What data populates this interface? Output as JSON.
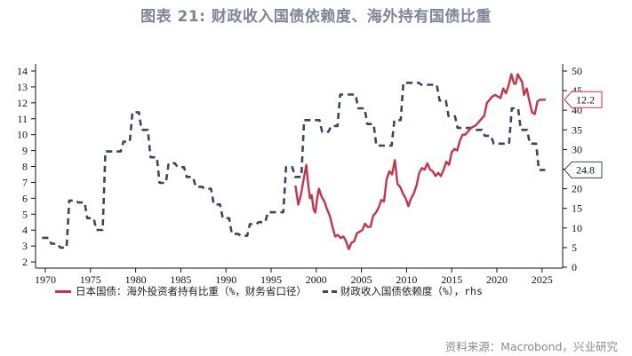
{
  "title": "图表 21: 财政收入国债依赖度、海外持有国债比重",
  "source": "资料来源：Macrobond，兴业研究",
  "colors": {
    "lhs_series": "#c8334a",
    "rhs_series": "#3a4564",
    "title": "#7d8597",
    "axis": "#111111"
  },
  "legend": {
    "lhs_label": "日本国债：海外投资者持有比重（%，财务省口径）",
    "rhs_label": "财政收入国债依赖度（%），rhs"
  },
  "callouts": {
    "lhs_last": "12.2",
    "rhs_last": "24.8"
  },
  "chart_data": {
    "type": "line",
    "title": "图表 21: 财政收入国债依赖度、海外持有国债比重",
    "xlabel": "",
    "ylabel_left": "",
    "ylabel_right": "",
    "x_ticks": [
      "1970",
      "1975",
      "1980",
      "1985",
      "1990",
      "1995",
      "2000",
      "2005",
      "2010",
      "2015",
      "2020",
      "2025"
    ],
    "y_left_ticks": [
      "2",
      "3",
      "4",
      "5",
      "6",
      "7",
      "8",
      "9",
      "10",
      "11",
      "12",
      "13",
      "14"
    ],
    "y_right_ticks": [
      "0",
      "5",
      "10",
      "15",
      "20",
      "25",
      "30",
      "35",
      "40",
      "45",
      "50"
    ],
    "ylim_left": [
      2,
      14
    ],
    "ylim_right": [
      0,
      50
    ],
    "xlim": [
      1969,
      2027.5
    ],
    "grid": false,
    "legend_position": "bottom",
    "series": [
      {
        "name": "日本国债：海外投资者持有比重（%，财务省口径）",
        "axis": "left",
        "style": "solid",
        "color": "#c8334a",
        "last_value": 12.2,
        "x": [
          1997.7,
          1998.0,
          1998.3,
          1998.6,
          1998.9,
          1999.1,
          1999.3,
          1999.5,
          1999.7,
          1999.9,
          2000.1,
          2000.3,
          2000.6,
          2000.9,
          2001.2,
          2001.5,
          2001.8,
          2002.1,
          2002.4,
          2002.7,
          2003.0,
          2003.3,
          2003.6,
          2003.9,
          2004.2,
          2004.5,
          2004.8,
          2005.1,
          2005.4,
          2005.7,
          2006.0,
          2006.3,
          2006.6,
          2006.9,
          2007.2,
          2007.5,
          2007.8,
          2008.1,
          2008.4,
          2008.7,
          2009.0,
          2009.3,
          2009.6,
          2009.9,
          2010.2,
          2010.5,
          2010.8,
          2011.1,
          2011.4,
          2011.7,
          2012.0,
          2012.3,
          2012.6,
          2012.9,
          2013.2,
          2013.5,
          2013.8,
          2014.1,
          2014.4,
          2014.7,
          2015.0,
          2015.3,
          2015.6,
          2015.9,
          2016.2,
          2016.5,
          2016.8,
          2017.1,
          2017.4,
          2017.7,
          2018.0,
          2018.3,
          2018.6,
          2018.9,
          2019.2,
          2019.5,
          2019.8,
          2020.1,
          2020.4,
          2020.7,
          2021.0,
          2021.3,
          2021.6,
          2021.9,
          2022.1,
          2022.3,
          2022.5,
          2022.8,
          2023.0,
          2023.3,
          2023.6,
          2023.9,
          2024.2,
          2024.5,
          2024.8,
          2025.1,
          2025.4
        ],
        "values": [
          6.8,
          5.6,
          6.2,
          7.2,
          8.1,
          6.9,
          6.0,
          6.2,
          5.3,
          5.1,
          6.0,
          6.6,
          6.1,
          5.8,
          5.3,
          4.9,
          4.2,
          3.6,
          3.7,
          3.5,
          3.6,
          3.3,
          2.8,
          3.2,
          3.3,
          3.8,
          3.9,
          4.0,
          4.4,
          4.2,
          4.2,
          4.9,
          5.1,
          5.4,
          5.9,
          5.8,
          7.2,
          7.7,
          7.5,
          8.4,
          6.9,
          6.7,
          6.3,
          6.0,
          5.5,
          6.0,
          6.3,
          6.8,
          7.6,
          7.9,
          7.8,
          8.2,
          7.8,
          7.7,
          7.4,
          7.6,
          7.4,
          7.8,
          8.3,
          8.1,
          8.9,
          9.1,
          9.0,
          9.6,
          10.0,
          10.0,
          10.2,
          10.4,
          10.5,
          10.6,
          10.8,
          11.0,
          11.2,
          12.0,
          12.2,
          12.4,
          12.5,
          12.4,
          12.3,
          12.9,
          12.6,
          13.1,
          13.8,
          13.2,
          13.2,
          13.8,
          13.6,
          13.3,
          12.5,
          12.9,
          12.1,
          11.4,
          11.3,
          12.1,
          12.2,
          12.2,
          12.2
        ]
      },
      {
        "name": "财政收入国债依赖度（%），rhs",
        "axis": "right",
        "style": "dashed",
        "color": "#3a4564",
        "last_value": 24.8,
        "x": [
          1970,
          1971,
          1972,
          1973,
          1974,
          1975,
          1976,
          1977,
          1978,
          1979,
          1980,
          1981,
          1982,
          1983,
          1984,
          1985,
          1986,
          1987,
          1988,
          1989,
          1990,
          1991,
          1992,
          1993,
          1994,
          1995,
          1996,
          1997,
          1998,
          1999,
          2000,
          2001,
          2002,
          2003,
          2004,
          2005,
          2006,
          2007,
          2008,
          2009,
          2010,
          2011,
          2012,
          2013,
          2014,
          2015,
          2016,
          2017,
          2018,
          2019,
          2020,
          2021,
          2022,
          2023,
          2024,
          2025
        ],
        "values": [
          7.5,
          6.0,
          5.0,
          17.0,
          16.5,
          12.5,
          9.5,
          29.5,
          29.5,
          32.0,
          39.5,
          35.0,
          28.0,
          21.5,
          26.5,
          25.5,
          23.0,
          20.5,
          20.0,
          16.0,
          12.5,
          8.5,
          8.0,
          11.0,
          11.5,
          14.0,
          14.0,
          25.5,
          23.0,
          37.5,
          37.5,
          34.5,
          36.0,
          44.0,
          44.0,
          40.5,
          36.5,
          31.0,
          31.0,
          37.5,
          47.0,
          47.0,
          46.5,
          46.5,
          42.5,
          38.5,
          35.5,
          35.5,
          35.0,
          33.5,
          31.5,
          31.5,
          40.5,
          35.0,
          31.5,
          24.8
        ]
      }
    ]
  }
}
